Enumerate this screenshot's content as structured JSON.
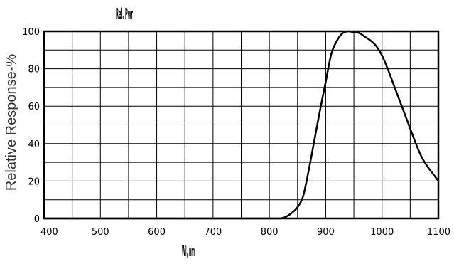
{
  "chart_data": {
    "type": "line",
    "title": "",
    "xlabel": "",
    "ylabel": "Relative Response-%",
    "xlim": [
      400,
      1100
    ],
    "ylim": [
      0,
      100
    ],
    "x_ticks": [
      400,
      500,
      600,
      700,
      800,
      900,
      1000,
      1100
    ],
    "y_ticks": [
      0,
      20,
      40,
      60,
      80,
      100
    ],
    "grid": true,
    "x_gridlines_every": 50,
    "y_gridlines_every": 10,
    "series": [
      {
        "color": "#000000",
        "x": [
          400,
          500,
          600,
          700,
          800,
          820,
          830,
          840,
          850,
          860,
          870,
          880,
          890,
          900,
          910,
          920,
          930,
          940,
          950,
          960,
          970,
          980,
          990,
          1000,
          1010,
          1020,
          1030,
          1040,
          1050,
          1060,
          1070,
          1080,
          1090,
          1100
        ],
        "y": [
          0,
          0,
          0,
          0,
          0,
          0,
          1,
          3,
          6,
          12,
          26,
          42,
          58,
          73,
          88,
          95,
          99,
          100,
          99.5,
          99,
          97,
          95,
          92,
          87,
          80,
          72,
          64,
          56,
          48,
          40,
          33,
          28,
          24,
          20
        ]
      }
    ]
  },
  "annotations": {
    "top_label": "Rel. Pwr",
    "bottom_label": "Wl, nm"
  }
}
